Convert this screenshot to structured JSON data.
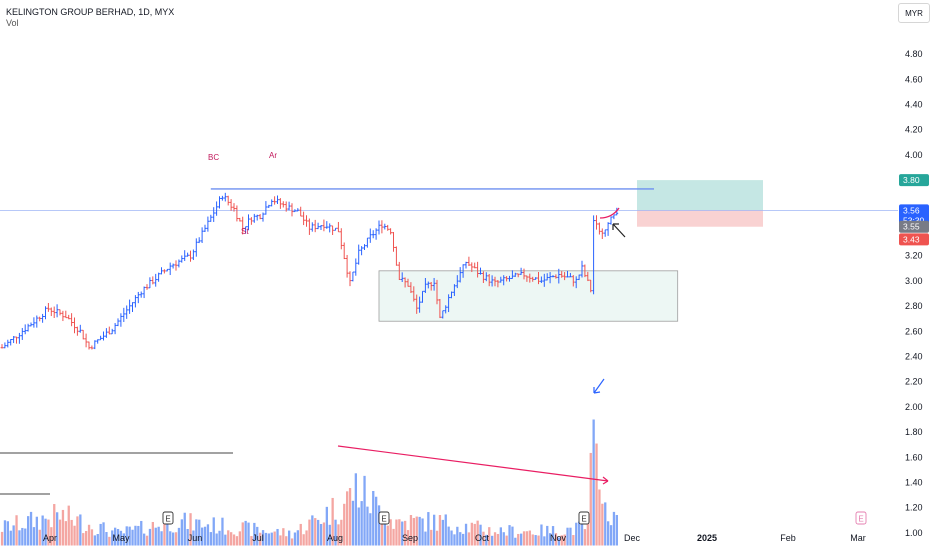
{
  "header": {
    "title": "KELINGTON GROUP BERHAD, 1D, MYX",
    "volume_label": "Vol"
  },
  "currency": "MYR",
  "colors": {
    "up": "#2962ff",
    "down": "#ef5350",
    "vol_up": "#82a7f7",
    "vol_down": "#f4a6a2",
    "resistance": "#6d8ff0",
    "target_zone": "#b2dfdb",
    "stop_zone": "#f8c7c7",
    "consolidation_zone": "#e8f5f1",
    "annotation": "#c2185b",
    "arrow_blue": "#2962ff",
    "arrow_pink": "#e91e63"
  },
  "price_badges": {
    "target": "3.80",
    "current": "3.56",
    "countdown": "53:30",
    "level": "3.55",
    "stop": "3.43"
  },
  "annotations": {
    "bc": "BC",
    "ar": "Ar",
    "st": "St"
  },
  "earnings_marker": "E",
  "chart_data": {
    "type": "ohlc",
    "y_ticks": [
      "4.80",
      "4.60",
      "4.40",
      "4.20",
      "4.00",
      "3.20",
      "3.00",
      "2.80",
      "2.60",
      "2.40",
      "2.20",
      "2.00",
      "1.80",
      "1.60",
      "1.40",
      "1.20",
      "1.00"
    ],
    "x_ticks": [
      "Apr",
      "May",
      "Jun",
      "Jul",
      "Aug",
      "Sep",
      "Oct",
      "Nov",
      "Dec",
      "2025",
      "Feb",
      "Mar"
    ],
    "ylim": [
      0.8,
      4.9
    ],
    "waypoints": [
      {
        "d": 0,
        "p": 2.47
      },
      {
        "d": 10,
        "p": 2.66
      },
      {
        "d": 16,
        "p": 2.78
      },
      {
        "d": 22,
        "p": 2.72
      },
      {
        "d": 27,
        "p": 2.6
      },
      {
        "d": 30,
        "p": 2.47
      },
      {
        "d": 38,
        "p": 2.62
      },
      {
        "d": 48,
        "p": 2.92
      },
      {
        "d": 58,
        "p": 3.12
      },
      {
        "d": 65,
        "p": 3.2
      },
      {
        "d": 72,
        "p": 3.5
      },
      {
        "d": 76,
        "p": 3.68
      },
      {
        "d": 80,
        "p": 3.57
      },
      {
        "d": 83,
        "p": 3.42
      },
      {
        "d": 86,
        "p": 3.5
      },
      {
        "d": 89,
        "p": 3.52
      },
      {
        "d": 93,
        "p": 3.65
      },
      {
        "d": 97,
        "p": 3.6
      },
      {
        "d": 102,
        "p": 3.55
      },
      {
        "d": 106,
        "p": 3.42
      },
      {
        "d": 111,
        "p": 3.45
      },
      {
        "d": 116,
        "p": 3.4
      },
      {
        "d": 120,
        "p": 2.98
      },
      {
        "d": 123,
        "p": 3.22
      },
      {
        "d": 127,
        "p": 3.35
      },
      {
        "d": 131,
        "p": 3.45
      },
      {
        "d": 134,
        "p": 3.4
      },
      {
        "d": 137,
        "p": 3.02
      },
      {
        "d": 140,
        "p": 2.97
      },
      {
        "d": 143,
        "p": 2.78
      },
      {
        "d": 146,
        "p": 2.95
      },
      {
        "d": 149,
        "p": 3.0
      },
      {
        "d": 151,
        "p": 2.7
      },
      {
        "d": 155,
        "p": 2.92
      },
      {
        "d": 160,
        "p": 3.15
      },
      {
        "d": 165,
        "p": 3.05
      },
      {
        "d": 170,
        "p": 2.98
      },
      {
        "d": 175,
        "p": 3.02
      },
      {
        "d": 180,
        "p": 3.05
      },
      {
        "d": 186,
        "p": 3.0
      },
      {
        "d": 192,
        "p": 3.05
      },
      {
        "d": 198,
        "p": 3.0
      },
      {
        "d": 200,
        "p": 3.1
      },
      {
        "d": 203,
        "p": 2.93
      },
      {
        "d": 204,
        "p": 3.48
      },
      {
        "d": 206,
        "p": 3.38
      },
      {
        "d": 209,
        "p": 3.45
      },
      {
        "d": 212,
        "p": 3.56
      }
    ],
    "volume_waypoints": [
      {
        "d": 0,
        "v": 1.05
      },
      {
        "d": 20,
        "v": 1.15
      },
      {
        "d": 40,
        "v": 1.0
      },
      {
        "d": 60,
        "v": 1.1
      },
      {
        "d": 80,
        "v": 1.05
      },
      {
        "d": 100,
        "v": 1.0
      },
      {
        "d": 118,
        "v": 1.25
      },
      {
        "d": 122,
        "v": 1.38
      },
      {
        "d": 135,
        "v": 1.1
      },
      {
        "d": 150,
        "v": 1.1
      },
      {
        "d": 170,
        "v": 1.02
      },
      {
        "d": 190,
        "v": 1.02
      },
      {
        "d": 202,
        "v": 1.05
      },
      {
        "d": 204,
        "v": 1.9
      },
      {
        "d": 206,
        "v": 1.22
      },
      {
        "d": 212,
        "v": 1.12
      }
    ],
    "resistance_level": 3.73,
    "current_price": 3.56,
    "target_zone": [
      3.56,
      3.8
    ],
    "stop_zone": [
      3.43,
      3.56
    ],
    "consolidation_zone": [
      2.68,
      3.08
    ]
  }
}
